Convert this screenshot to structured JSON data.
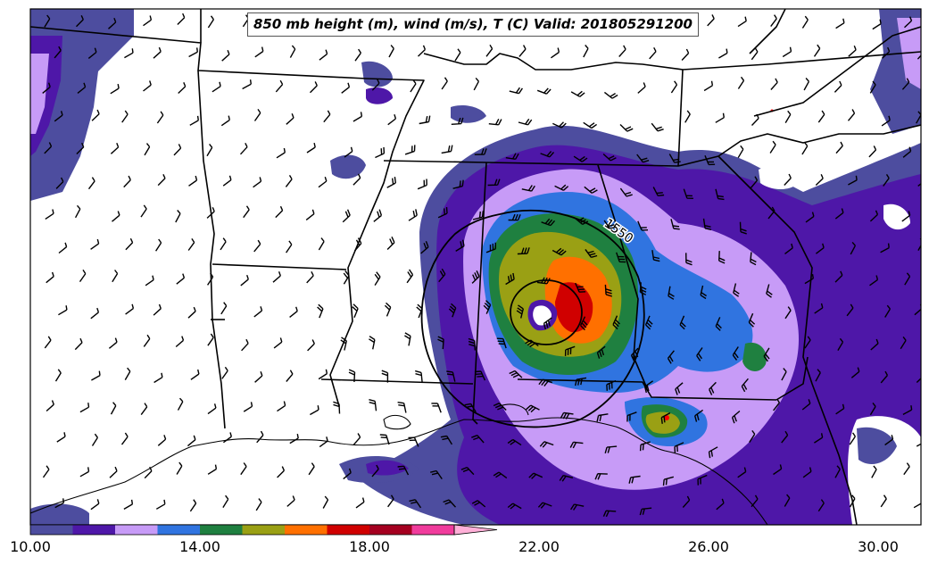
{
  "title": "850 mb height (m), wind (m/s), T (C) Valid: 201805291200",
  "contour_label": "1550",
  "colorbar": {
    "labels": [
      "10.00",
      "14.00",
      "18.00",
      "22.00",
      "26.00",
      "30.00"
    ],
    "colors": [
      "#4d4d9f",
      "#4e17a8",
      "#c79bf7",
      "#3074e0",
      "#1f8040",
      "#9aa014",
      "#ff7000",
      "#d00000",
      "#a50020",
      "#f03c9c",
      "#ffb0d8"
    ]
  }
}
